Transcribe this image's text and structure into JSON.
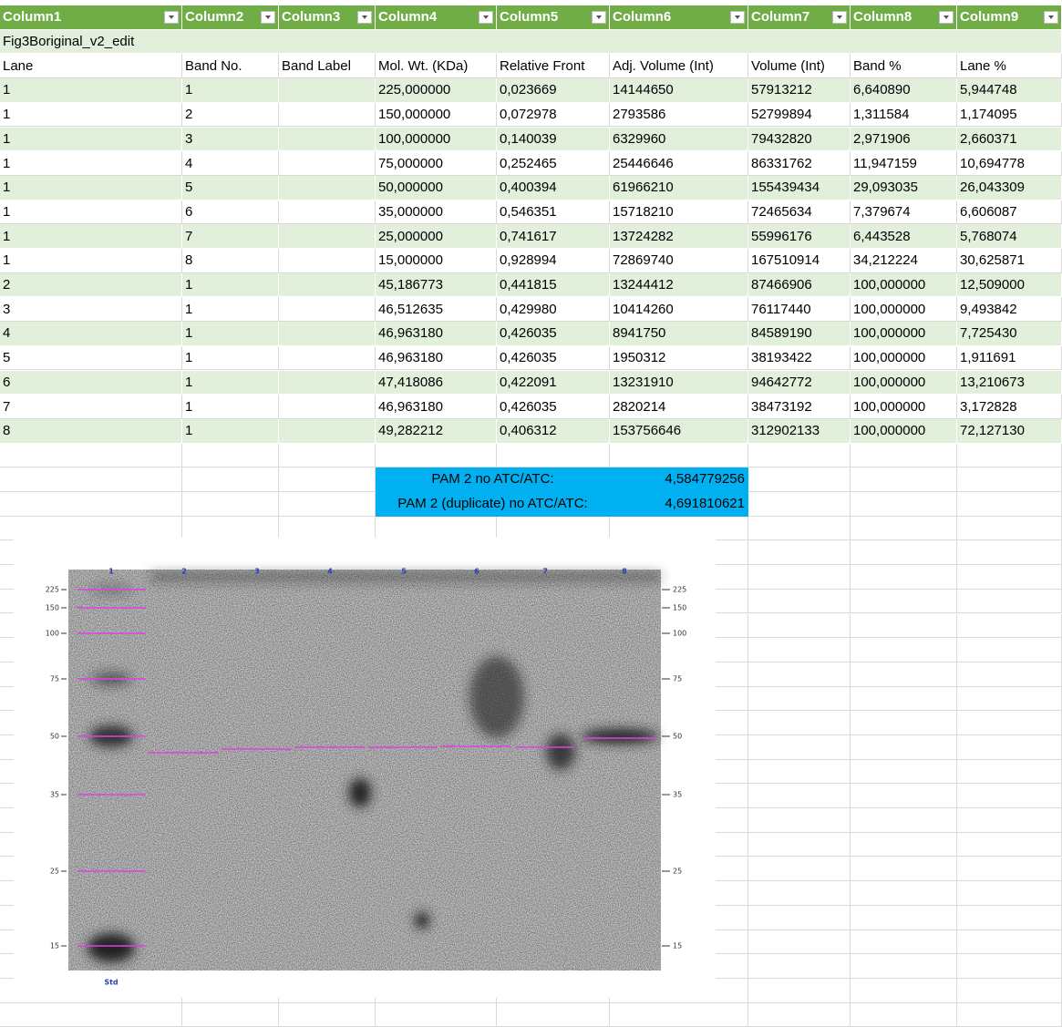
{
  "header": {
    "columns": [
      "Column1",
      "Column2",
      "Column3",
      "Column4",
      "Column5",
      "Column6",
      "Column7",
      "Column8",
      "Column9"
    ]
  },
  "title": "Fig3Boriginal_v2_edit",
  "table": {
    "columns": [
      "Lane",
      "Band No.",
      "Band Label",
      "Mol. Wt. (KDa)",
      "Relative Front",
      "Adj. Volume (Int)",
      "Volume (Int)",
      "Band %",
      "Lane %"
    ],
    "rows": [
      [
        "1",
        "1",
        "",
        "225,000000",
        "0,023669",
        "14144650",
        "57913212",
        "6,640890",
        "5,944748"
      ],
      [
        "1",
        "2",
        "",
        "150,000000",
        "0,072978",
        "2793586",
        "52799894",
        "1,311584",
        "1,174095"
      ],
      [
        "1",
        "3",
        "",
        "100,000000",
        "0,140039",
        "6329960",
        "79432820",
        "2,971906",
        "2,660371"
      ],
      [
        "1",
        "4",
        "",
        "75,000000",
        "0,252465",
        "25446646",
        "86331762",
        "11,947159",
        "10,694778"
      ],
      [
        "1",
        "5",
        "",
        "50,000000",
        "0,400394",
        "61966210",
        "155439434",
        "29,093035",
        "26,043309"
      ],
      [
        "1",
        "6",
        "",
        "35,000000",
        "0,546351",
        "15718210",
        "72465634",
        "7,379674",
        "6,606087"
      ],
      [
        "1",
        "7",
        "",
        "25,000000",
        "0,741617",
        "13724282",
        "55996176",
        "6,443528",
        "5,768074"
      ],
      [
        "1",
        "8",
        "",
        "15,000000",
        "0,928994",
        "72869740",
        "167510914",
        "34,212224",
        "30,625871"
      ],
      [
        "2",
        "1",
        "",
        "45,186773",
        "0,441815",
        "13244412",
        "87466906",
        "100,000000",
        "12,509000"
      ],
      [
        "3",
        "1",
        "",
        "46,512635",
        "0,429980",
        "10414260",
        "76117440",
        "100,000000",
        "9,493842"
      ],
      [
        "4",
        "1",
        "",
        "46,963180",
        "0,426035",
        "8941750",
        "84589190",
        "100,000000",
        "7,725430"
      ],
      [
        "5",
        "1",
        "",
        "46,963180",
        "0,426035",
        "1950312",
        "38193422",
        "100,000000",
        "1,911691"
      ],
      [
        "6",
        "1",
        "",
        "47,418086",
        "0,422091",
        "13231910",
        "94642772",
        "100,000000",
        "13,210673"
      ],
      [
        "7",
        "1",
        "",
        "46,963180",
        "0,426035",
        "2820214",
        "38473192",
        "100,000000",
        "3,172828"
      ],
      [
        "8",
        "1",
        "",
        "49,282212",
        "0,406312",
        "153756646",
        "312902133",
        "100,000000",
        "72,127130"
      ]
    ]
  },
  "summary": [
    {
      "label": "PAM 2 no ATC/ATC:",
      "value": "4,584779256"
    },
    {
      "label": "PAM 2 (duplicate) no ATC/ATC:",
      "value": "4,691810621"
    }
  ],
  "gel": {
    "lanes": [
      "1",
      "2",
      "3",
      "4",
      "5",
      "6",
      "7",
      "8"
    ],
    "markers": [
      "225",
      "150",
      "100",
      "75",
      "50",
      "35",
      "25",
      "15"
    ],
    "std": "Std"
  }
}
